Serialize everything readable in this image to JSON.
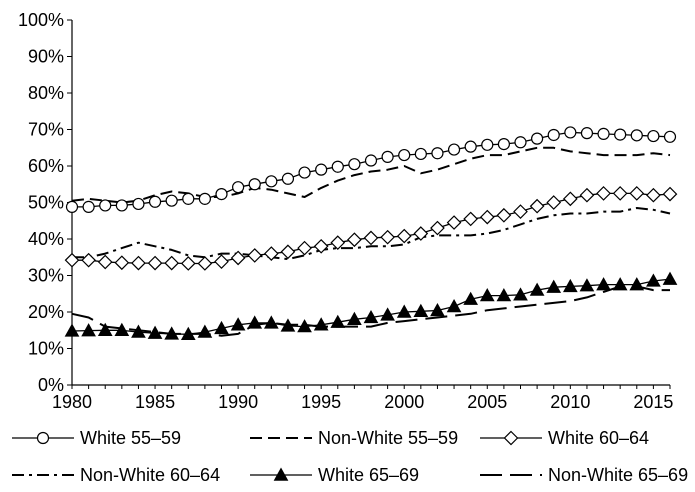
{
  "chart_data": {
    "type": "line",
    "title": "",
    "xlabel": "",
    "ylabel": "",
    "xlim": [
      1980,
      2016
    ],
    "ylim": [
      0,
      100
    ],
    "x_ticks": [
      1980,
      1985,
      1990,
      1995,
      2000,
      2005,
      2010,
      2015
    ],
    "y_ticks": [
      "0%",
      "10%",
      "20%",
      "30%",
      "40%",
      "50%",
      "60%",
      "70%",
      "80%",
      "90%",
      "100%"
    ],
    "grid": false,
    "legend_position": "bottom",
    "x": [
      1980,
      1981,
      1982,
      1983,
      1984,
      1985,
      1986,
      1987,
      1988,
      1989,
      1990,
      1991,
      1992,
      1993,
      1994,
      1995,
      1996,
      1997,
      1998,
      1999,
      2000,
      2001,
      2002,
      2003,
      2004,
      2005,
      2006,
      2007,
      2008,
      2009,
      2010,
      2011,
      2012,
      2013,
      2014,
      2015,
      2016
    ],
    "series": [
      {
        "name": "White 55–59",
        "style": "solid-open-circle",
        "values": [
          48.8,
          48.8,
          49.2,
          49.2,
          49.6,
          50.2,
          50.5,
          51.0,
          51.0,
          52.3,
          54.2,
          55.0,
          55.8,
          56.5,
          58.2,
          59.0,
          59.8,
          60.5,
          61.5,
          62.5,
          63.0,
          63.3,
          63.5,
          64.5,
          65.3,
          65.8,
          66.0,
          66.5,
          67.5,
          68.5,
          69.2,
          69.0,
          68.8,
          68.6,
          68.4,
          68.2,
          68.0
        ]
      },
      {
        "name": "Non-White 55–59",
        "style": "long-dash",
        "values": [
          50.5,
          51.0,
          50.5,
          50.0,
          50.5,
          52.0,
          53.0,
          52.5,
          51.5,
          51.5,
          52.5,
          54.0,
          53.5,
          52.5,
          51.5,
          54.0,
          56.0,
          57.5,
          58.5,
          59.0,
          60.0,
          58.0,
          59.0,
          60.5,
          62.0,
          63.0,
          63.0,
          64.0,
          65.0,
          65.0,
          64.0,
          63.5,
          63.0,
          63.0,
          63.0,
          63.5,
          63.0
        ]
      },
      {
        "name": "White 60–64",
        "style": "solid-open-diamond",
        "values": [
          34.2,
          34.2,
          33.7,
          33.5,
          33.4,
          33.4,
          33.4,
          33.3,
          33.3,
          33.8,
          34.8,
          35.5,
          36.0,
          36.5,
          37.5,
          38.0,
          39.0,
          39.8,
          40.3,
          40.5,
          40.8,
          41.5,
          43.0,
          44.5,
          45.5,
          46.0,
          46.5,
          47.5,
          49.0,
          50.0,
          51.0,
          52.0,
          52.5,
          52.5,
          52.5,
          52.0,
          52.3
        ]
      },
      {
        "name": "Non-White 60–64",
        "style": "dash-dot",
        "values": [
          35.0,
          35.0,
          36.0,
          37.5,
          39.0,
          38.0,
          37.0,
          35.5,
          35.0,
          36.0,
          36.0,
          35.5,
          35.0,
          34.5,
          35.5,
          37.0,
          37.5,
          37.5,
          38.0,
          38.0,
          38.5,
          40.5,
          41.0,
          41.0,
          41.0,
          41.5,
          42.5,
          44.0,
          45.5,
          46.5,
          47.0,
          47.0,
          47.5,
          47.5,
          48.5,
          48.0,
          47.0
        ]
      },
      {
        "name": "White 65–69",
        "style": "solid-filled-triangle",
        "values": [
          14.8,
          14.9,
          15.0,
          15.0,
          14.5,
          14.2,
          14.0,
          13.9,
          14.5,
          15.5,
          16.5,
          17.0,
          17.0,
          16.2,
          16.0,
          16.5,
          17.2,
          18.0,
          18.5,
          19.2,
          20.0,
          20.2,
          20.4,
          21.5,
          23.5,
          24.5,
          24.5,
          24.7,
          26.0,
          26.8,
          27.0,
          27.2,
          27.5,
          27.5,
          27.5,
          28.5,
          29.0
        ]
      },
      {
        "name": "Non-White 65–69",
        "style": "long-dash-gap",
        "values": [
          19.5,
          18.5,
          16.0,
          15.5,
          15.0,
          14.5,
          14.0,
          14.0,
          14.0,
          13.5,
          14.0,
          16.5,
          17.0,
          16.5,
          16.5,
          16.0,
          16.0,
          16.0,
          16.0,
          17.0,
          17.5,
          18.0,
          18.5,
          19.0,
          19.5,
          20.5,
          21.0,
          21.5,
          22.0,
          22.5,
          23.0,
          24.0,
          25.5,
          27.0,
          27.0,
          26.0,
          26.0
        ]
      }
    ]
  }
}
